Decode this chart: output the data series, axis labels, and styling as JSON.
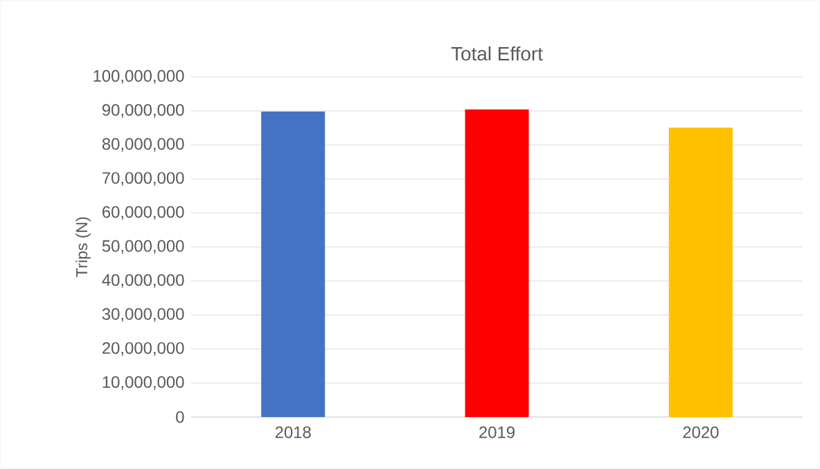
{
  "chart_data": {
    "type": "bar",
    "title": "Total Effort",
    "ylabel": "Trips (N)",
    "categories": [
      "2018",
      "2019",
      "2020"
    ],
    "values": [
      89800000,
      90400000,
      85100000
    ],
    "colors": [
      "#4472c4",
      "#ff0000",
      "#ffc000"
    ],
    "ylim": [
      0,
      100000000
    ],
    "yticks": [
      0,
      {
        "value": 10000000,
        "label": "10,000,000"
      },
      {
        "value": 20000000,
        "label": "20,000,000"
      },
      {
        "value": 30000000,
        "label": "30,000,000"
      },
      {
        "value": 40000000,
        "label": "40,000,000"
      },
      {
        "value": 50000000,
        "label": "50,000,000"
      },
      {
        "value": 60000000,
        "label": "60,000,000"
      },
      {
        "value": 70000000,
        "label": "70,000,000"
      },
      {
        "value": 80000000,
        "label": "80,000,000"
      },
      {
        "value": 90000000,
        "label": "90,000,000"
      },
      {
        "value": 100000000,
        "label": "100,000,000"
      }
    ],
    "grid": "y"
  }
}
